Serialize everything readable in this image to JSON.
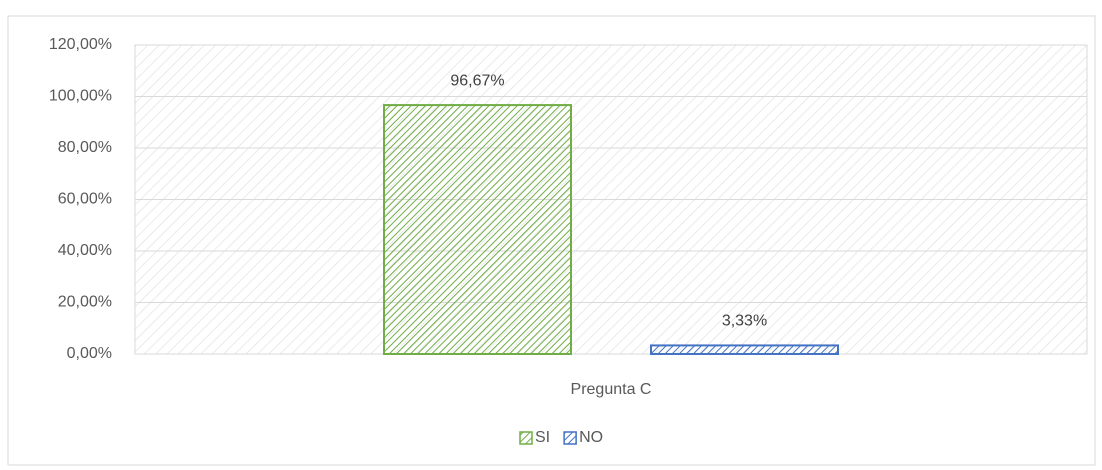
{
  "chart_data": {
    "type": "bar",
    "categories": [
      "Pregunta C"
    ],
    "series": [
      {
        "name": "SI",
        "color": "#70ad47",
        "values": [
          96.67
        ],
        "value_labels": [
          "96,67%"
        ]
      },
      {
        "name": "NO",
        "color": "#4472c4",
        "values": [
          3.33
        ],
        "value_labels": [
          "3,33%"
        ]
      }
    ],
    "ylim": [
      0,
      120
    ],
    "yticks": [
      {
        "value": 0,
        "label": "0,00%"
      },
      {
        "value": 20,
        "label": "20,00%"
      },
      {
        "value": 40,
        "label": "40,00%"
      },
      {
        "value": 60,
        "label": "60,00%"
      },
      {
        "value": 80,
        "label": "80,00%"
      },
      {
        "value": 100,
        "label": "100,00%"
      },
      {
        "value": 120,
        "label": "120,00%"
      }
    ],
    "grid": true,
    "legend": "bottom"
  }
}
